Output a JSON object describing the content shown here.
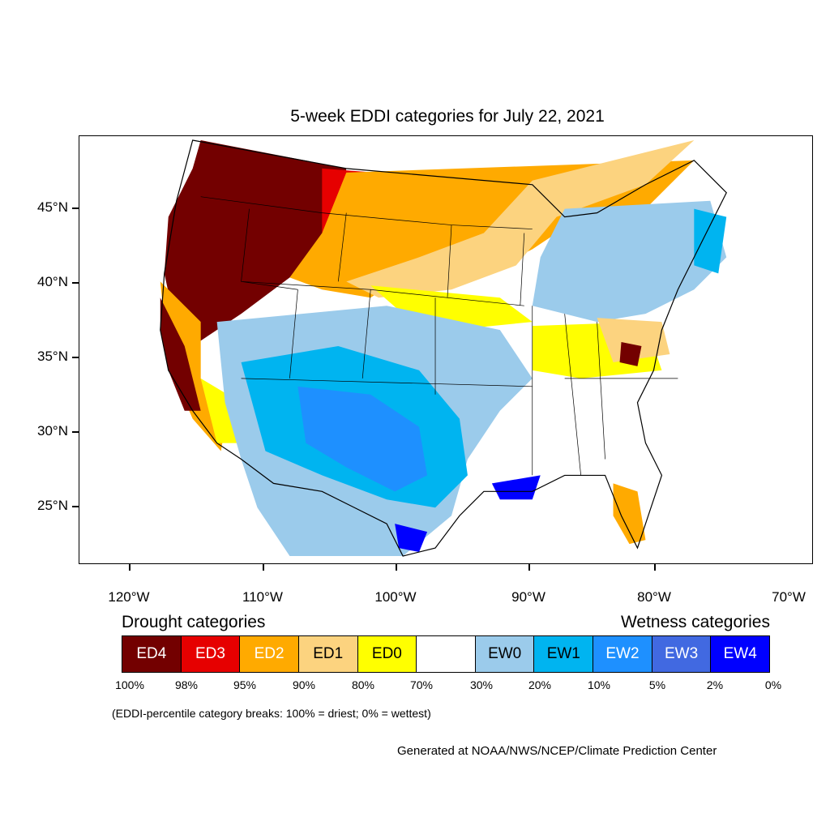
{
  "title": "5-week EDDI categories for July 22, 2021",
  "lat_labels": [
    "45°N",
    "40°N",
    "35°N",
    "30°N",
    "25°N"
  ],
  "lon_labels": [
    "120°W",
    "110°W",
    "100°W",
    "90°W",
    "80°W",
    "70°W"
  ],
  "legend": {
    "drought_heading": "Drought categories",
    "wetness_heading": "Wetness categories",
    "categories": [
      {
        "label": "ED4",
        "color": "#730000",
        "text_color": "#ffffff"
      },
      {
        "label": "ED3",
        "color": "#e60000",
        "text_color": "#ffffff"
      },
      {
        "label": "ED2",
        "color": "#ffaa00",
        "text_color": "#ffffff"
      },
      {
        "label": "ED1",
        "color": "#fcd37f",
        "text_color": "#000000"
      },
      {
        "label": "ED0",
        "color": "#ffff00",
        "text_color": "#000000"
      },
      {
        "label": "",
        "color": "#ffffff",
        "text_color": "#000000"
      },
      {
        "label": "EW0",
        "color": "#9bcbeb",
        "text_color": "#000000"
      },
      {
        "label": "EW1",
        "color": "#00b4f0",
        "text_color": "#000000"
      },
      {
        "label": "EW2",
        "color": "#1e90ff",
        "text_color": "#ffffff"
      },
      {
        "label": "EW3",
        "color": "#4169e1",
        "text_color": "#ffffff"
      },
      {
        "label": "EW4",
        "color": "#0000ff",
        "text_color": "#ffffff"
      }
    ],
    "percentiles": [
      "100%",
      "98%",
      "95%",
      "90%",
      "80%",
      "70%",
      "30%",
      "20%",
      "10%",
      "5%",
      "2%",
      "0%"
    ]
  },
  "note": "(EDDI-percentile category breaks: 100% = driest; 0% = wettest)",
  "credit": "Generated at NOAA/NWS/NCEP/Climate Prediction Center"
}
